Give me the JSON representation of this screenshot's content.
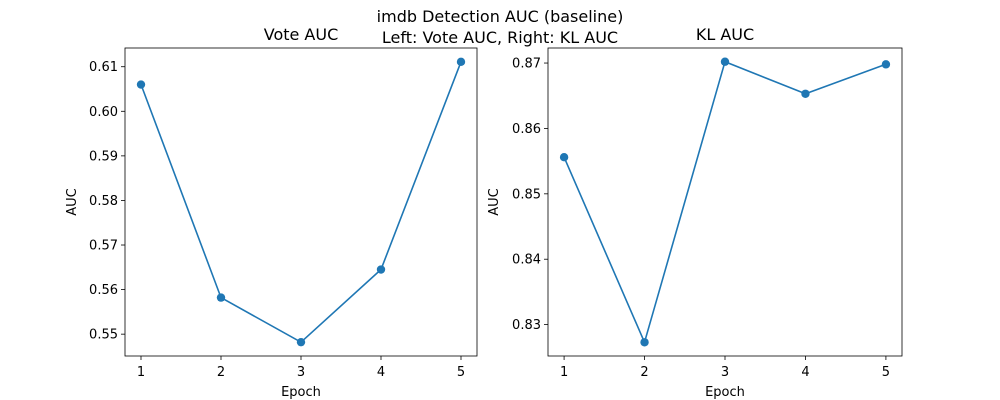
{
  "figure": {
    "suptitle_line1": "imdb Detection AUC (baseline)",
    "suptitle_line2": "Left: Vote AUC, Right: KL AUC"
  },
  "chart_data": [
    {
      "type": "line",
      "title": "Vote AUC",
      "xlabel": "Epoch",
      "ylabel": "AUC",
      "x": [
        1,
        2,
        3,
        4,
        5
      ],
      "series": [
        {
          "values": [
            0.606,
            0.5582,
            0.5482,
            0.5645,
            0.6111
          ],
          "color": "#1f77b4"
        }
      ],
      "xlim": [
        0.8,
        5.2
      ],
      "ylim": [
        0.5451,
        0.6142
      ],
      "xticks": [
        1,
        2,
        3,
        4,
        5
      ],
      "xtick_labels": [
        "1",
        "2",
        "3",
        "4",
        "5"
      ],
      "yticks": [
        0.55,
        0.56,
        0.57,
        0.58,
        0.59,
        0.6,
        0.61
      ],
      "ytick_labels": [
        "0.55",
        "0.56",
        "0.57",
        "0.58",
        "0.59",
        "0.60",
        "0.61"
      ],
      "grid": false,
      "markers": "circle"
    },
    {
      "type": "line",
      "title": "KL AUC",
      "xlabel": "Epoch",
      "ylabel": "AUC",
      "x": [
        1,
        2,
        3,
        4,
        5
      ],
      "series": [
        {
          "values": [
            0.8556,
            0.8273,
            0.8702,
            0.8653,
            0.8698
          ],
          "color": "#1f77b4"
        }
      ],
      "xlim": [
        0.8,
        5.2
      ],
      "ylim": [
        0.8252,
        0.8723
      ],
      "xticks": [
        1,
        2,
        3,
        4,
        5
      ],
      "xtick_labels": [
        "1",
        "2",
        "3",
        "4",
        "5"
      ],
      "yticks": [
        0.83,
        0.84,
        0.85,
        0.86,
        0.87
      ],
      "ytick_labels": [
        "0.83",
        "0.84",
        "0.85",
        "0.86",
        "0.87"
      ],
      "grid": false,
      "markers": "circle"
    }
  ]
}
